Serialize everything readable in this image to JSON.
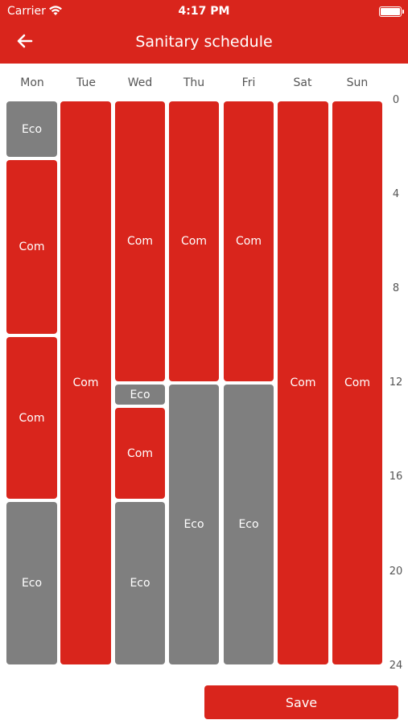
{
  "status_bar": {
    "carrier": "Carrier",
    "time": "4:17 PM"
  },
  "header": {
    "title": "Sanitary schedule"
  },
  "days": [
    "Mon",
    "Tue",
    "Wed",
    "Thu",
    "Fri",
    "Sat",
    "Sun"
  ],
  "hour_labels": [
    "0",
    "4",
    "8",
    "12",
    "16",
    "20",
    "24"
  ],
  "schedule": {
    "mon": [
      {
        "mode": "Eco",
        "start": 0,
        "end": 2.5
      },
      {
        "mode": "Com",
        "start": 2.5,
        "end": 10
      },
      {
        "mode": "Com",
        "start": 10,
        "end": 17
      },
      {
        "mode": "Eco",
        "start": 17,
        "end": 24
      }
    ],
    "tue": [
      {
        "mode": "Com",
        "start": 0,
        "end": 24
      }
    ],
    "wed": [
      {
        "mode": "Com",
        "start": 0,
        "end": 12
      },
      {
        "mode": "Eco",
        "start": 12,
        "end": 13
      },
      {
        "mode": "Com",
        "start": 13,
        "end": 17
      },
      {
        "mode": "Eco",
        "start": 17,
        "end": 24
      }
    ],
    "thu": [
      {
        "mode": "Com",
        "start": 0,
        "end": 12
      },
      {
        "mode": "Eco",
        "start": 12,
        "end": 24
      }
    ],
    "fri": [
      {
        "mode": "Com",
        "start": 0,
        "end": 12
      },
      {
        "mode": "Eco",
        "start": 12,
        "end": 24
      }
    ],
    "sat": [
      {
        "mode": "Com",
        "start": 0,
        "end": 24
      }
    ],
    "sun": [
      {
        "mode": "Com",
        "start": 0,
        "end": 24
      }
    ]
  },
  "colors": {
    "com": "#d9251c",
    "eco": "#7f7f7f"
  },
  "save_label": "Save"
}
